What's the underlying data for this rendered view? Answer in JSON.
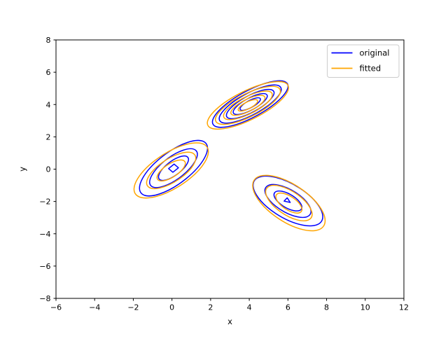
{
  "figure": {
    "background": "#ffffff"
  },
  "axes": {
    "xlabel": "x",
    "ylabel": "y",
    "xlim": [
      -6,
      12
    ],
    "ylim": [
      -8,
      8
    ],
    "xticks": [
      -6,
      -4,
      -2,
      0,
      2,
      4,
      6,
      8,
      10,
      12
    ],
    "yticks": [
      -8,
      -6,
      -4,
      -2,
      0,
      2,
      4,
      6,
      8
    ]
  },
  "legend": {
    "position": "upper right",
    "items": [
      {
        "label": "original",
        "color": "#0000ff"
      },
      {
        "label": "fitted",
        "color": "#ffa500"
      }
    ]
  },
  "chart_data": {
    "type": "contour",
    "title": "",
    "xlabel": "x",
    "ylabel": "y",
    "xlim": [
      -6,
      12
    ],
    "ylim": [
      -8,
      8
    ],
    "grid": false,
    "legend_position": "upper right",
    "description": "Contour lines of a 3-component Gaussian mixture: 'original' (blue) vs 'fitted' (orange). Components centered near (0,0), (4,4) and (6,-2).",
    "line_width": 1.5,
    "series": [
      {
        "name": "original",
        "color": "#0000ff",
        "components": [
          {
            "center": [
              0.08,
              0.06
            ],
            "angle_deg": 44,
            "semi_axes": [
              2.28,
              0.92
            ],
            "ring_scales": [
              1.0,
              0.7,
              0.44
            ],
            "center_mark": {
              "type": "rect",
              "width": 0.4,
              "height": 0.32
            }
          },
          {
            "center": [
              4.05,
              4.03
            ],
            "angle_deg": 34,
            "semi_axes": [
              2.3,
              0.78
            ],
            "ring_scales": [
              1.0,
              0.82,
              0.63,
              0.45,
              0.27
            ]
          },
          {
            "center": [
              6.0,
              -1.97
            ],
            "angle_deg": -38,
            "semi_axes": [
              2.15,
              1.0
            ],
            "ring_scales": [
              1.0,
              0.66,
              0.4
            ],
            "center_mark": {
              "type": "triangle",
              "width": 0.3,
              "height": 0.26
            }
          }
        ]
      },
      {
        "name": "fitted",
        "color": "#ffa500",
        "components": [
          {
            "center": [
              -0.04,
              -0.08
            ],
            "angle_deg": 40,
            "semi_axes": [
              2.36,
              1.02
            ],
            "ring_scales": [
              1.0,
              0.66,
              0.38
            ]
          },
          {
            "center": [
              3.93,
              3.95
            ],
            "angle_deg": 32,
            "semi_axes": [
              2.42,
              0.85
            ],
            "ring_scales": [
              1.0,
              0.8,
              0.6,
              0.42,
              0.24
            ]
          },
          {
            "center": [
              6.05,
              -2.1
            ],
            "angle_deg": -41,
            "semi_axes": [
              2.3,
              1.08
            ],
            "ring_scales": [
              1.0,
              0.64,
              0.36
            ]
          }
        ]
      }
    ]
  }
}
